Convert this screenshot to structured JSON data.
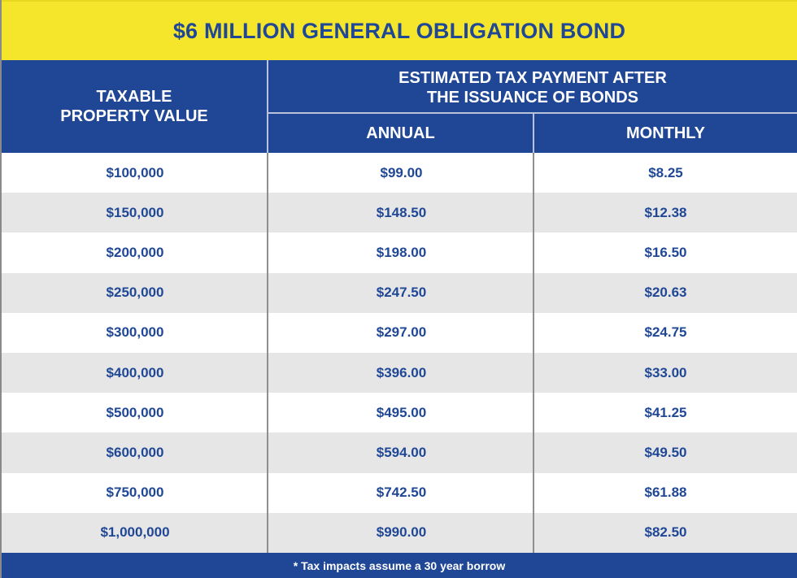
{
  "title": "$6 MILLION GENERAL OBLIGATION BOND",
  "headers": {
    "property_line1": "TAXABLE",
    "property_line2": "PROPERTY VALUE",
    "estimate_line1": "ESTIMATED TAX PAYMENT AFTER",
    "estimate_line2": "THE ISSUANCE OF BONDS",
    "annual": "ANNUAL",
    "monthly": "MONTHLY"
  },
  "footnote": "* Tax impacts assume a 30 year borrow",
  "colors": {
    "title_bg": "#f5e52b",
    "primary_blue": "#1f4796",
    "row_alt": "#e6e6e6"
  },
  "chart_data": {
    "type": "table",
    "title": "$6 MILLION GENERAL OBLIGATION BOND",
    "columns": [
      "TAXABLE PROPERTY VALUE",
      "ANNUAL",
      "MONTHLY"
    ],
    "rows": [
      [
        "$100,000",
        "$99.00",
        "$8.25"
      ],
      [
        "$150,000",
        "$148.50",
        "$12.38"
      ],
      [
        "$200,000",
        "$198.00",
        "$16.50"
      ],
      [
        "$250,000",
        "$247.50",
        "$20.63"
      ],
      [
        "$300,000",
        "$297.00",
        "$24.75"
      ],
      [
        "$400,000",
        "$396.00",
        "$33.00"
      ],
      [
        "$500,000",
        "$495.00",
        "$41.25"
      ],
      [
        "$600,000",
        "$594.00",
        "$49.50"
      ],
      [
        "$750,000",
        "$742.50",
        "$61.88"
      ],
      [
        "$1,000,000",
        "$990.00",
        "$82.50"
      ]
    ]
  }
}
